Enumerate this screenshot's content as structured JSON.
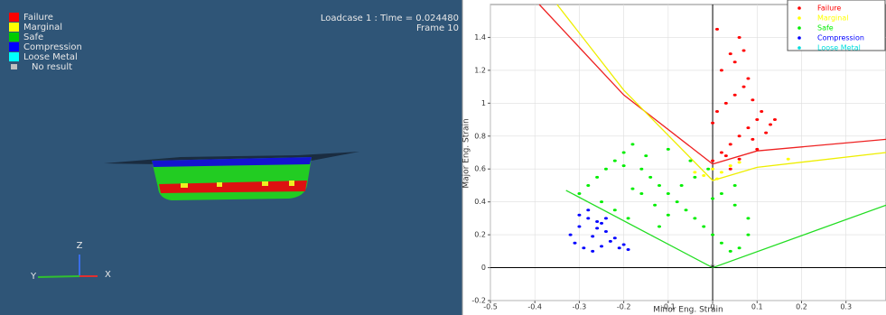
{
  "viewport": {
    "info": [
      "Loadcase 1 : Time = 0.024480",
      "Frame 10"
    ],
    "legend": [
      {
        "label": "Failure",
        "color": "#ff0000"
      },
      {
        "label": "Marginal",
        "color": "#ffff00"
      },
      {
        "label": "Safe",
        "color": "#00cc00"
      },
      {
        "label": "Compression",
        "color": "#0000ff"
      },
      {
        "label": "Loose Metal",
        "color": "#00ffff"
      },
      {
        "label": "No result",
        "color": "#c0c0c0"
      }
    ]
  },
  "triad": {
    "z": "Z",
    "x": "X",
    "y": "Y"
  },
  "chart_data": {
    "type": "scatter",
    "xlabel": "Minor Eng. Strain",
    "ylabel": "Major Eng. Strain",
    "xlim": [
      -0.5,
      0.39
    ],
    "ylim": [
      -0.2,
      1.6
    ],
    "xticks": [
      -0.5,
      -0.4,
      -0.3,
      -0.2,
      -0.1,
      0,
      0.1,
      0.2,
      0.3
    ],
    "yticks": [
      -0.2,
      0,
      0.2,
      0.4,
      0.6,
      0.8,
      1,
      1.2,
      1.4
    ],
    "legend": "upper right",
    "series": [
      {
        "name": "Failure",
        "color": "#ff0000",
        "x": [
          0.0,
          0.02,
          0.04,
          0.06,
          0.08,
          0.1,
          0.12,
          0.01,
          0.03,
          0.05,
          0.07,
          0.09,
          0.11,
          0.0,
          0.02,
          0.04,
          0.06,
          0.08,
          0.1,
          0.13,
          0.03,
          0.05,
          0.07,
          0.01,
          0.04,
          0.06,
          0.14,
          0.09
        ],
        "y": [
          0.65,
          0.7,
          0.75,
          0.8,
          0.85,
          0.9,
          0.82,
          0.95,
          1.0,
          1.05,
          1.1,
          0.78,
          0.95,
          0.88,
          1.2,
          1.3,
          1.4,
          1.15,
          0.72,
          0.87,
          0.68,
          1.25,
          1.32,
          1.45,
          0.6,
          0.66,
          0.9,
          1.02
        ]
      },
      {
        "name": "Marginal",
        "color": "#ffff00",
        "x": [
          -0.02,
          0.0,
          0.02,
          0.04,
          0.06,
          0.17,
          -0.04,
          0.01
        ],
        "y": [
          0.56,
          0.6,
          0.58,
          0.62,
          0.64,
          0.66,
          0.58,
          0.54
        ]
      },
      {
        "name": "Safe",
        "color": "#00ee00",
        "x": [
          -0.3,
          -0.28,
          -0.26,
          -0.24,
          -0.22,
          -0.2,
          -0.18,
          -0.16,
          -0.14,
          -0.12,
          -0.1,
          -0.08,
          -0.06,
          -0.04,
          -0.02,
          0.0,
          0.02,
          0.04,
          0.06,
          0.08,
          -0.25,
          -0.22,
          -0.19,
          -0.16,
          -0.13,
          -0.1,
          -0.07,
          -0.04,
          -0.01,
          0.02,
          0.05,
          0.08,
          -0.2,
          -0.15,
          -0.1,
          -0.05,
          0.0,
          0.05,
          -0.18,
          -0.12
        ],
        "y": [
          0.45,
          0.5,
          0.55,
          0.6,
          0.65,
          0.7,
          0.75,
          0.6,
          0.55,
          0.5,
          0.45,
          0.4,
          0.35,
          0.3,
          0.25,
          0.2,
          0.15,
          0.1,
          0.12,
          0.2,
          0.4,
          0.35,
          0.3,
          0.45,
          0.38,
          0.32,
          0.5,
          0.55,
          0.6,
          0.45,
          0.38,
          0.3,
          0.62,
          0.68,
          0.72,
          0.65,
          0.42,
          0.5,
          0.48,
          0.25
        ]
      },
      {
        "name": "Compression",
        "color": "#0000ff",
        "x": [
          -0.32,
          -0.3,
          -0.28,
          -0.26,
          -0.24,
          -0.22,
          -0.2,
          -0.31,
          -0.29,
          -0.27,
          -0.25,
          -0.23,
          -0.21,
          -0.3,
          -0.28,
          -0.26,
          -0.24,
          -0.19,
          -0.27,
          -0.25
        ],
        "y": [
          0.2,
          0.25,
          0.3,
          0.28,
          0.22,
          0.18,
          0.14,
          0.15,
          0.12,
          0.1,
          0.13,
          0.16,
          0.12,
          0.32,
          0.35,
          0.24,
          0.3,
          0.11,
          0.19,
          0.27
        ]
      },
      {
        "name": "Loose Metal",
        "color": "#00dddd",
        "x": [],
        "y": []
      }
    ],
    "lines": [
      {
        "color": "#ee2222",
        "x": [
          -0.39,
          -0.2,
          0.0,
          0.1,
          0.39
        ],
        "y": [
          1.6,
          1.05,
          0.63,
          0.71,
          0.78
        ]
      },
      {
        "color": "#eeee00",
        "x": [
          -0.35,
          -0.2,
          0.0,
          0.1,
          0.39
        ],
        "y": [
          1.6,
          1.08,
          0.53,
          0.61,
          0.7
        ]
      },
      {
        "color": "#22dd22",
        "x": [
          -0.33,
          0.0,
          0.39
        ],
        "y": [
          0.47,
          0.0,
          0.38
        ]
      }
    ]
  }
}
